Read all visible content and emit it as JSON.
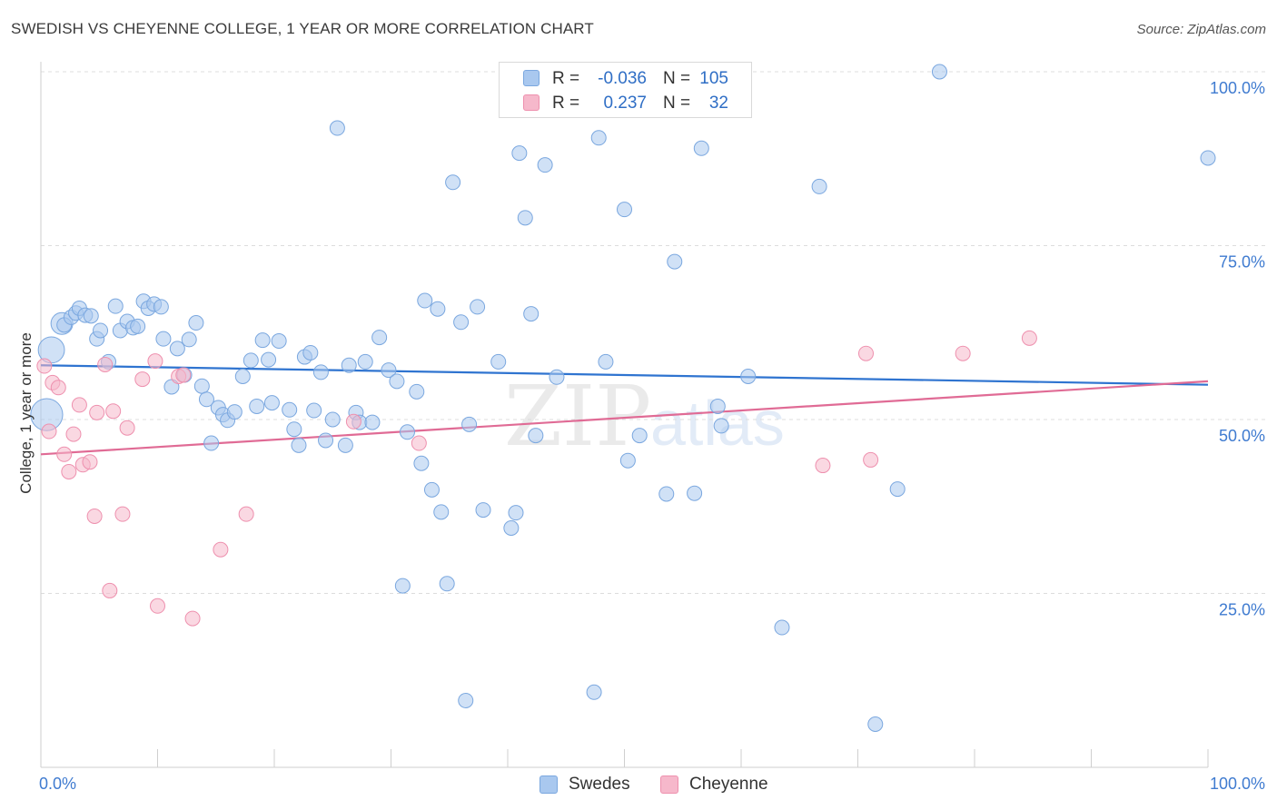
{
  "header": {
    "title": "SWEDISH VS CHEYENNE COLLEGE, 1 YEAR OR MORE CORRELATION CHART",
    "source_label": "Source:",
    "source_value": "ZipAtlas.com"
  },
  "watermark": {
    "part1": "ZIP",
    "part2": "atlas"
  },
  "colors": {
    "swedes_fill": "#a9c8ef",
    "swedes_stroke": "#7aa7df",
    "swedes_line": "#2f74d0",
    "cheyenne_fill": "#f6b8cb",
    "cheyenne_stroke": "#ee90ae",
    "cheyenne_line": "#e06b95",
    "tick_label": "#3f7bd0",
    "grid": "#dcdcdc"
  },
  "legend": {
    "rows": [
      {
        "series": "swedes",
        "r_label": "R =",
        "r_value": "-0.036",
        "n_label": "N =",
        "n_value": "105"
      },
      {
        "series": "cheyenne",
        "r_label": "R =",
        "r_value": "0.237",
        "n_label": "N =",
        "n_value": "32"
      }
    ]
  },
  "bottom_legend": {
    "swedes": "Swedes",
    "cheyenne": "Cheyenne"
  },
  "chart_data": {
    "type": "scatter",
    "title": "SWEDISH VS CHEYENNE COLLEGE, 1 YEAR OR MORE CORRELATION CHART",
    "xlabel": "",
    "ylabel": "College, 1 year or more",
    "xlim": [
      0,
      100
    ],
    "ylim": [
      0,
      100
    ],
    "x_tick_labels": [
      "0.0%",
      "100.0%"
    ],
    "y_ticks": [
      25,
      50,
      75,
      100
    ],
    "y_tick_labels": [
      "25.0%",
      "50.0%",
      "75.0%",
      "100.0%"
    ],
    "grid": "horizontal dashed",
    "legend_position": "top-center",
    "series": [
      {
        "name": "Swedes",
        "key": "swedes",
        "trend": [
          [
            0,
            57.8
          ],
          [
            100,
            55.0
          ]
        ],
        "points": [
          [
            0.5,
            50.7,
            2.2
          ],
          [
            0.9,
            60.0,
            1.8
          ],
          [
            1.8,
            63.8,
            1.5
          ],
          [
            2.0,
            63.6,
            1.0
          ],
          [
            2.6,
            64.7,
            1.0
          ],
          [
            3.0,
            65.3,
            1.0
          ],
          [
            3.3,
            66.0,
            1.0
          ],
          [
            3.8,
            65.0,
            1.0
          ],
          [
            4.3,
            64.9,
            1.0
          ],
          [
            4.8,
            61.6,
            1.0
          ],
          [
            5.1,
            62.8,
            1.0
          ],
          [
            5.8,
            58.3,
            1.0
          ],
          [
            6.4,
            66.3,
            1.0
          ],
          [
            6.8,
            62.8,
            1.0
          ],
          [
            7.4,
            64.1,
            1.0
          ],
          [
            7.9,
            63.2,
            1.0
          ],
          [
            8.3,
            63.4,
            1.0
          ],
          [
            8.8,
            67.0,
            1.0
          ],
          [
            9.2,
            66.0,
            1.0
          ],
          [
            9.7,
            66.6,
            1.0
          ],
          [
            10.3,
            66.2,
            1.0
          ],
          [
            10.5,
            61.6,
            1.0
          ],
          [
            11.2,
            54.7,
            1.0
          ],
          [
            11.7,
            60.2,
            1.0
          ],
          [
            12.3,
            56.4,
            1.0
          ],
          [
            12.7,
            61.5,
            1.0
          ],
          [
            13.3,
            63.9,
            1.0
          ],
          [
            13.8,
            54.8,
            1.0
          ],
          [
            14.2,
            52.9,
            1.0
          ],
          [
            14.6,
            46.6,
            1.0
          ],
          [
            15.2,
            51.7,
            1.0
          ],
          [
            15.6,
            50.7,
            1.0
          ],
          [
            16.0,
            49.9,
            1.0
          ],
          [
            16.6,
            51.1,
            1.0
          ],
          [
            17.3,
            56.2,
            1.0
          ],
          [
            18.0,
            58.5,
            1.0
          ],
          [
            18.5,
            51.9,
            1.0
          ],
          [
            19.0,
            61.4,
            1.0
          ],
          [
            19.5,
            58.6,
            1.0
          ],
          [
            19.8,
            52.4,
            1.0
          ],
          [
            20.4,
            61.3,
            1.0
          ],
          [
            21.3,
            51.4,
            1.0
          ],
          [
            21.7,
            48.6,
            1.0
          ],
          [
            22.1,
            46.3,
            1.0
          ],
          [
            22.6,
            59.0,
            1.0
          ],
          [
            23.1,
            59.6,
            1.0
          ],
          [
            23.4,
            51.3,
            1.0
          ],
          [
            24.0,
            56.8,
            1.0
          ],
          [
            24.4,
            47.0,
            1.0
          ],
          [
            25.0,
            50.0,
            1.0
          ],
          [
            25.4,
            91.9,
            1.0
          ],
          [
            26.1,
            46.3,
            1.0
          ],
          [
            26.4,
            57.8,
            1.0
          ],
          [
            27.0,
            51.0,
            1.0
          ],
          [
            27.3,
            49.6,
            1.0
          ],
          [
            27.8,
            58.3,
            1.0
          ],
          [
            28.4,
            49.6,
            1.0
          ],
          [
            29.0,
            61.8,
            1.0
          ],
          [
            29.8,
            57.1,
            1.0
          ],
          [
            30.5,
            55.5,
            1.0
          ],
          [
            31.0,
            26.1,
            1.0
          ],
          [
            31.4,
            48.2,
            1.0
          ],
          [
            32.2,
            54.0,
            1.0
          ],
          [
            32.6,
            43.7,
            1.0
          ],
          [
            32.9,
            67.1,
            1.0
          ],
          [
            33.5,
            39.9,
            1.0
          ],
          [
            34.0,
            65.9,
            1.0
          ],
          [
            34.3,
            36.7,
            1.0
          ],
          [
            34.8,
            26.4,
            1.0
          ],
          [
            35.3,
            84.1,
            1.0
          ],
          [
            36.0,
            64.0,
            1.0
          ],
          [
            36.4,
            9.6,
            1.0
          ],
          [
            36.7,
            49.3,
            1.0
          ],
          [
            37.4,
            66.2,
            1.0
          ],
          [
            37.9,
            37.0,
            1.0
          ],
          [
            39.2,
            58.3,
            1.0
          ],
          [
            40.3,
            34.4,
            1.0
          ],
          [
            40.7,
            36.6,
            1.0
          ],
          [
            41.0,
            88.3,
            1.0
          ],
          [
            41.5,
            79.0,
            1.0
          ],
          [
            42.0,
            65.2,
            1.0
          ],
          [
            42.4,
            47.7,
            1.0
          ],
          [
            43.2,
            86.6,
            1.0
          ],
          [
            44.2,
            56.1,
            1.0
          ],
          [
            46.4,
            99.9,
            1.0
          ],
          [
            47.4,
            10.8,
            1.0
          ],
          [
            47.8,
            90.5,
            1.0
          ],
          [
            48.4,
            58.3,
            1.0
          ],
          [
            50.0,
            80.2,
            1.0
          ],
          [
            50.3,
            44.1,
            1.0
          ],
          [
            51.3,
            47.7,
            1.0
          ],
          [
            53.6,
            39.3,
            1.0
          ],
          [
            54.3,
            72.7,
            1.0
          ],
          [
            56.0,
            39.4,
            1.0
          ],
          [
            56.6,
            89.0,
            1.0
          ],
          [
            58.0,
            51.9,
            1.0
          ],
          [
            58.3,
            49.1,
            1.0
          ],
          [
            60.6,
            56.2,
            1.0
          ],
          [
            63.5,
            20.1,
            1.0
          ],
          [
            66.7,
            83.5,
            1.0
          ],
          [
            71.5,
            6.2,
            1.0
          ],
          [
            73.4,
            40.0,
            1.0
          ],
          [
            77.0,
            100.0,
            1.0
          ],
          [
            100.0,
            87.6,
            1.0
          ]
        ]
      },
      {
        "name": "Cheyenne",
        "key": "cheyenne",
        "trend": [
          [
            0,
            45.0
          ],
          [
            100,
            55.5
          ]
        ],
        "points": [
          [
            0.3,
            57.7,
            1.0
          ],
          [
            0.7,
            48.3,
            1.0
          ],
          [
            1.0,
            55.3,
            1.0
          ],
          [
            1.5,
            54.6,
            1.0
          ],
          [
            2.0,
            45.0,
            1.0
          ],
          [
            2.4,
            42.5,
            1.0
          ],
          [
            2.8,
            47.9,
            1.0
          ],
          [
            3.3,
            52.1,
            1.0
          ],
          [
            3.6,
            43.5,
            1.0
          ],
          [
            4.2,
            43.9,
            1.0
          ],
          [
            4.6,
            36.1,
            1.0
          ],
          [
            4.8,
            51.0,
            1.0
          ],
          [
            5.5,
            57.9,
            1.0
          ],
          [
            5.9,
            25.4,
            1.0
          ],
          [
            6.2,
            51.2,
            1.0
          ],
          [
            7.0,
            36.4,
            1.0
          ],
          [
            7.4,
            48.8,
            1.0
          ],
          [
            8.7,
            55.8,
            1.0
          ],
          [
            9.8,
            58.4,
            1.0
          ],
          [
            10.0,
            23.2,
            1.0
          ],
          [
            11.8,
            56.2,
            1.0
          ],
          [
            12.2,
            56.4,
            1.0
          ],
          [
            13.0,
            21.4,
            1.0
          ],
          [
            15.4,
            31.3,
            1.0
          ],
          [
            17.6,
            36.4,
            1.0
          ],
          [
            26.8,
            49.7,
            1.0
          ],
          [
            32.4,
            46.6,
            1.0
          ],
          [
            67.0,
            43.4,
            1.0
          ],
          [
            70.7,
            59.5,
            1.0
          ],
          [
            71.1,
            44.2,
            1.0
          ],
          [
            79.0,
            59.5,
            1.0
          ],
          [
            84.7,
            61.7,
            1.0
          ]
        ]
      }
    ]
  }
}
